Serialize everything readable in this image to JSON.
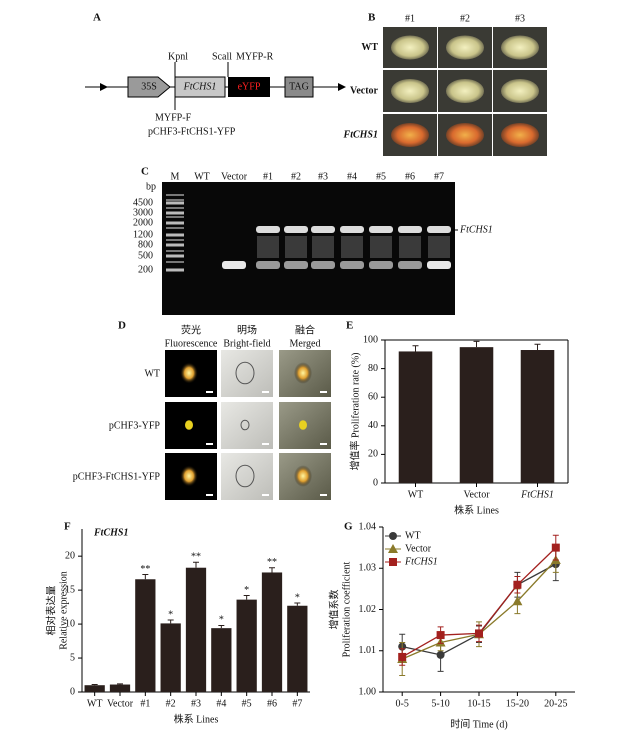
{
  "panel_labels": [
    "A",
    "B",
    "C",
    "D",
    "E",
    "F",
    "G"
  ],
  "construct": {
    "promoter": "35S",
    "site_1": "Kpnl",
    "site_2": "Scall",
    "primer_r": "MYFP-R",
    "gene": "FtCHS1",
    "tag": "eYFP",
    "stop": "TAG",
    "primer_f": "MYFP-F",
    "vector": "pCHF3-FtCHS1-YFP"
  },
  "callus": {
    "columns": [
      "#1",
      "#2",
      "#3"
    ],
    "rows": [
      "WT",
      "Vector",
      "FtCHS1"
    ]
  },
  "gel": {
    "lanes": [
      "M",
      "WT",
      "Vector",
      "#1",
      "#2",
      "#3",
      "#4",
      "#5",
      "#6",
      "#7"
    ],
    "unit": "bp",
    "ladder": [
      "4500",
      "3000",
      "2000",
      "1200",
      "800",
      "500",
      "200"
    ],
    "band_label": "FtCHS1"
  },
  "microscopy": {
    "columns": [
      [
        "荧光",
        "Fluorescence"
      ],
      [
        "明场",
        "Bright-field"
      ],
      [
        "融合",
        "Merged"
      ]
    ],
    "rows": [
      "WT",
      "pCHF3-YFP",
      "pCHF3-FtCHS1-YFP"
    ]
  },
  "chart_data": [
    {
      "type": "bar",
      "y_label": "增值率 Proliferation rate (%)",
      "x_label": "株系 Lines",
      "categories": [
        "WT",
        "Vector",
        "FtCHS1"
      ],
      "values": [
        92,
        95,
        93
      ],
      "errors": [
        4,
        4,
        4
      ],
      "color": "#2a1f1c",
      "ylim": [
        0,
        100
      ],
      "yticks": [
        0,
        20,
        40,
        60,
        80,
        100
      ]
    },
    {
      "type": "bar",
      "title": "FtCHS1",
      "y_label": [
        "相对表达量",
        "Relative expression"
      ],
      "x_label": "株系 Lines",
      "categories": [
        "WT",
        "Vector",
        "#1",
        "#2",
        "#3",
        "#4",
        "#5",
        "#6",
        "#7"
      ],
      "values": [
        1.0,
        1.1,
        16.6,
        10.1,
        18.3,
        9.4,
        13.6,
        17.6,
        12.7
      ],
      "errors": [
        0.1,
        0.1,
        0.7,
        0.5,
        0.8,
        0.4,
        0.6,
        0.7,
        0.4
      ],
      "significance": [
        null,
        null,
        "**",
        "*",
        "**",
        "*",
        "*",
        "**",
        "*"
      ],
      "color": "#2a1f1c",
      "ylim": [
        0,
        24
      ],
      "yticks": [
        0,
        5,
        10,
        15,
        20
      ]
    },
    {
      "type": "line",
      "y_label": [
        "增值系数",
        "Proliferation coefficient"
      ],
      "x_label": "时间 Time (d)",
      "categories": [
        "0-5",
        "5-10",
        "10-15",
        "15-20",
        "20-25"
      ],
      "series": [
        {
          "name": "WT",
          "color": "#3a3a3a",
          "marker": "circle",
          "values": [
            1.011,
            1.009,
            1.014,
            1.026,
            1.031
          ],
          "errors": [
            0.003,
            0.004,
            0.002,
            0.003,
            0.004
          ]
        },
        {
          "name": "Vector",
          "color": "#8a7a2a",
          "marker": "triangle",
          "values": [
            1.008,
            1.012,
            1.014,
            1.022,
            1.032
          ],
          "errors": [
            0.004,
            0.002,
            0.003,
            0.003,
            0.003
          ]
        },
        {
          "name": "FtCHS1",
          "color": "#a3201e",
          "marker": "square",
          "values": [
            1.0085,
            1.0138,
            1.0142,
            1.026,
            1.035
          ],
          "errors": [
            0.002,
            0.002,
            0.002,
            0.002,
            0.003
          ]
        }
      ],
      "ylim": [
        1.0,
        1.04
      ],
      "yticks": [
        {
          "value": 1.0,
          "label": "1.00"
        },
        1.01,
        1.02,
        1.03,
        1.04
      ],
      "legend": "upper left"
    }
  ]
}
